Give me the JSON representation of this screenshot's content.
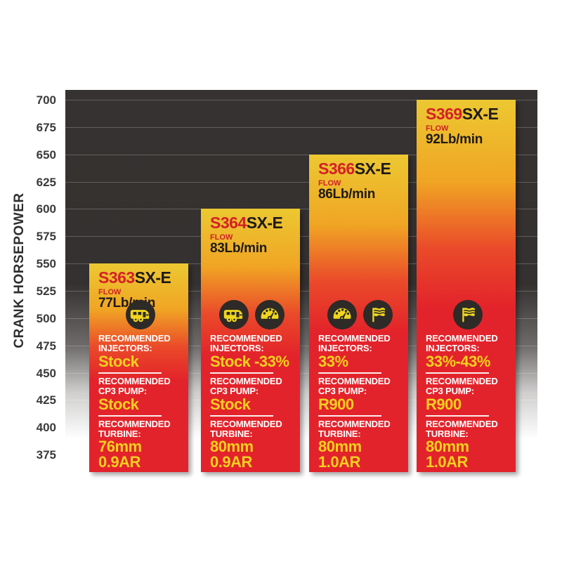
{
  "chart": {
    "ylabel": "CRANK HORSEPOWER"
  },
  "labels": {
    "flow": "FLOW",
    "recommended": "RECOMMENDED",
    "injectors": "INJECTORS:",
    "cp3_pump": "CP3 PUMP:",
    "turbine": "TURBINE:"
  },
  "bars": [
    {
      "model_prefix": "S363",
      "model_suffix": "SX-E",
      "flow": "77Lb/min",
      "injectors": "Stock",
      "cp3_pump": "Stock",
      "turbine_line1": "76mm",
      "turbine_line2": "0.9AR",
      "icons": [
        "camper-icon"
      ],
      "hp": 550
    },
    {
      "model_prefix": "S364",
      "model_suffix": "SX-E",
      "flow": "83Lb/min",
      "injectors": "Stock -33%",
      "cp3_pump": "Stock",
      "turbine_line1": "80mm",
      "turbine_line2": "0.9AR",
      "icons": [
        "camper-icon",
        "gauge-icon"
      ],
      "hp": 600
    },
    {
      "model_prefix": "S366",
      "model_suffix": "SX-E",
      "flow": "86Lb/min",
      "injectors": "33%",
      "cp3_pump": "R900",
      "turbine_line1": "80mm",
      "turbine_line2": "1.0AR",
      "icons": [
        "gauge-icon",
        "flag-icon"
      ],
      "hp": 650
    },
    {
      "model_prefix": "S369",
      "model_suffix": "SX-E",
      "flow": "92Lb/min",
      "injectors": "33%-43%",
      "cp3_pump": "R900",
      "turbine_line1": "80mm",
      "turbine_line2": "1.0AR",
      "icons": [
        "flag-icon"
      ],
      "hp": 700
    }
  ],
  "chart_data": {
    "type": "bar",
    "categories": [
      "S363SX-E",
      "S364SX-E",
      "S366SX-E",
      "S369SX-E"
    ],
    "values": [
      550,
      600,
      650,
      700
    ],
    "flows_lb_min": [
      77,
      83,
      86,
      92
    ],
    "recommended_injectors": [
      "Stock",
      "Stock -33%",
      "33%",
      "33%-43%"
    ],
    "recommended_cp3_pump": [
      "Stock",
      "Stock",
      "R900",
      "R900"
    ],
    "recommended_turbine": [
      "76mm 0.9AR",
      "80mm 0.9AR",
      "80mm 1.0AR",
      "80mm 1.0AR"
    ],
    "title": "",
    "xlabel": "",
    "ylabel": "CRANK HORSEPOWER",
    "ylim": [
      375,
      700
    ],
    "yticks": [
      700,
      675,
      650,
      625,
      600,
      575,
      550,
      525,
      500,
      475,
      450,
      425,
      400,
      375
    ],
    "ytick_step": 25,
    "grid": true,
    "legend": false,
    "bar_colors": "yellow-to-red vertical gradient"
  },
  "colors": {
    "accent_red": "#d42127",
    "accent_yellow": "#f2d21e",
    "bar_gradient_top": "#ecc832",
    "bar_gradient_mid": "#ee8c25",
    "bar_gradient_bottom": "#e3232b",
    "plot_background": "#363231",
    "icon_circle": "#2d2a27",
    "label_white": "#ffffff"
  }
}
